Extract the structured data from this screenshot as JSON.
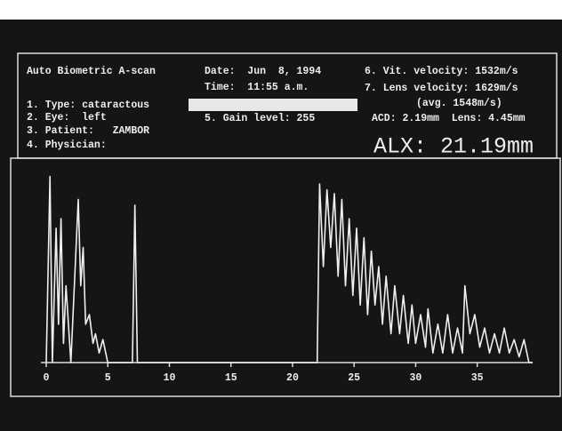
{
  "screen": {
    "title": "Auto Biometric A-scan",
    "type": "1. Type: cataractous",
    "eye": "2. Eye:  left",
    "patient": "3. Patient:   ZAMBOR",
    "physician": "4. Physician:",
    "date": "Date:  Jun  8, 1994",
    "time": "Time:  11:55 a.m.",
    "gain": "5. Gain level: 255",
    "vit_velocity": "6. Vit. velocity: 1532m/s",
    "lens_velocity": "7. Lens velocity: 1629m/s",
    "avg_velocity": "(avg. 1548m/s)",
    "acd_lens": "ACD: 2.19mm  Lens: 4.45mm",
    "alx": "ALX: 21.19mm"
  },
  "chart_data": {
    "type": "line",
    "color": "#efefef",
    "x": [
      0,
      0.3,
      0.5,
      0.8,
      1.0,
      1.2,
      1.4,
      1.6,
      2.0,
      2.6,
      2.8,
      3.0,
      3.2,
      3.5,
      3.8,
      4.0,
      4.3,
      4.6,
      5.0,
      7.0,
      7.2,
      7.4,
      22.0,
      22.2,
      22.5,
      22.8,
      23.1,
      23.4,
      23.7,
      24.0,
      24.3,
      24.6,
      24.9,
      25.2,
      25.5,
      25.8,
      26.1,
      26.4,
      26.7,
      27.0,
      27.3,
      27.6,
      28.0,
      28.3,
      28.7,
      29.0,
      29.4,
      29.7,
      30.0,
      30.4,
      30.8,
      31.0,
      31.4,
      31.8,
      32.2,
      32.6,
      33.0,
      33.4,
      33.8,
      34.0,
      34.4,
      34.8,
      35.2,
      35.6,
      36.0,
      36.4,
      36.8,
      37.2,
      37.6,
      38.0,
      38.4,
      38.8,
      39.2,
      39.5
    ],
    "values": [
      0,
      97,
      0,
      70,
      20,
      75,
      10,
      40,
      0,
      85,
      40,
      60,
      20,
      25,
      10,
      15,
      5,
      12,
      0,
      0,
      82,
      0,
      0,
      93,
      50,
      90,
      60,
      88,
      45,
      85,
      40,
      75,
      35,
      70,
      30,
      65,
      25,
      58,
      30,
      50,
      20,
      45,
      15,
      40,
      15,
      35,
      10,
      30,
      10,
      25,
      8,
      28,
      5,
      20,
      5,
      25,
      5,
      18,
      5,
      40,
      15,
      25,
      8,
      18,
      5,
      15,
      5,
      18,
      5,
      12,
      3,
      12,
      0,
      0
    ],
    "xlim": [
      0,
      39.5
    ],
    "ylim": [
      0,
      100
    ],
    "xticks": [
      0,
      5,
      10,
      15,
      20,
      25,
      30,
      35
    ]
  }
}
